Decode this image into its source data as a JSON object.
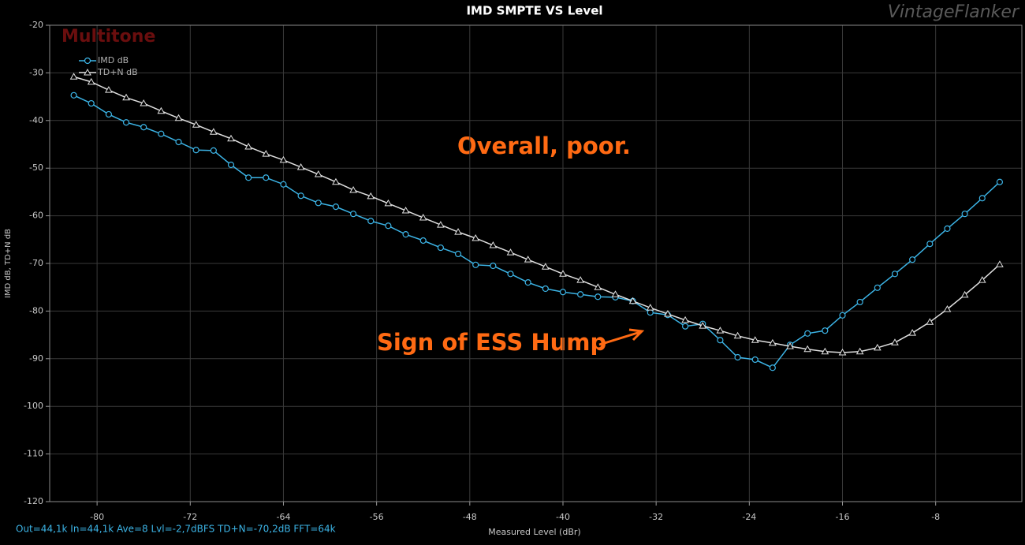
{
  "chart_data": {
    "type": "line",
    "title": "IMD SMPTE VS Level",
    "watermark": "VintageFlanker",
    "app_name": "Multitone",
    "xlabel": "Measured Level (dBr)",
    "ylabel": "IMD dB, TD+N dB",
    "status": "Out=44,1k In=44,1k Ave=8 Lvl=-2,7dBFS TD+N=-70,2dB FFT=64k",
    "annotations": [
      "Overall, poor.",
      "Sign of ESS Hump"
    ],
    "x": [
      -82,
      -80.5,
      -79,
      -77.5,
      -76,
      -74.5,
      -73,
      -71.5,
      -70,
      -68.5,
      -67,
      -65.5,
      -64,
      -62.5,
      -61,
      -59.5,
      -58,
      -56.5,
      -55,
      -53.5,
      -52,
      -50.5,
      -49,
      -47.5,
      -46,
      -44.5,
      -43,
      -41.5,
      -40,
      -38.5,
      -37,
      -35.5,
      -34,
      -32.5,
      -31,
      -29.5,
      -28,
      -26.5,
      -25,
      -23.5,
      -22,
      -20.5,
      -19,
      -17.5,
      -16,
      -14.5,
      -13,
      -11.5,
      -10,
      -8.5,
      -7,
      -5.5,
      -4,
      -2.5
    ],
    "series": [
      {
        "name": "IMD dB",
        "color": "#3cb4e6",
        "marker": "circle",
        "values": [
          -34.7,
          -36.4,
          -38.7,
          -40.4,
          -41.4,
          -42.8,
          -44.5,
          -46.2,
          -46.3,
          -49.3,
          -52.0,
          -52.0,
          -53.4,
          -55.8,
          -57.3,
          -58.1,
          -59.6,
          -61.1,
          -62.1,
          -63.9,
          -65.2,
          -66.7,
          -68.0,
          -70.3,
          -70.5,
          -72.2,
          -74.0,
          -75.3,
          -76.0,
          -76.5,
          -77.0,
          -77.1,
          -77.9,
          -80.3,
          -80.8,
          -83.2,
          -82.7,
          -86.1,
          -89.7,
          -90.2,
          -91.9,
          -87.1,
          -84.7,
          -84.1,
          -80.9,
          -78.1,
          -75.1,
          -72.2,
          -69.2,
          -65.9,
          -62.7,
          -59.6,
          -56.3,
          -52.9
        ]
      },
      {
        "name": "TD+N dB",
        "color": "#e0e0e0",
        "marker": "triangle",
        "values": [
          -30.8,
          -31.9,
          -33.6,
          -35.2,
          -36.4,
          -38.0,
          -39.5,
          -40.9,
          -42.4,
          -43.8,
          -45.5,
          -47.0,
          -48.3,
          -49.8,
          -51.3,
          -52.9,
          -54.6,
          -55.9,
          -57.4,
          -58.9,
          -60.4,
          -61.9,
          -63.4,
          -64.7,
          -66.2,
          -67.7,
          -69.2,
          -70.7,
          -72.2,
          -73.5,
          -75.0,
          -76.5,
          -77.9,
          -79.3,
          -80.6,
          -81.9,
          -83.1,
          -84.1,
          -85.2,
          -86.1,
          -86.7,
          -87.4,
          -88.0,
          -88.5,
          -88.7,
          -88.5,
          -87.7,
          -86.6,
          -84.6,
          -82.3,
          -79.6,
          -76.6,
          -73.5,
          -70.2
        ]
      }
    ],
    "xlim": [
      -84.07,
      -0.6
    ],
    "xticks": [
      -80,
      -72,
      -64,
      -56,
      -48,
      -40,
      -32,
      -24,
      -16,
      -8
    ],
    "ylim": [
      -120,
      -20
    ],
    "yticks": [
      -20,
      -30,
      -40,
      -50,
      -60,
      -70,
      -80,
      -90,
      -100,
      -110,
      -120
    ],
    "grid": true,
    "legend": "upper left"
  }
}
